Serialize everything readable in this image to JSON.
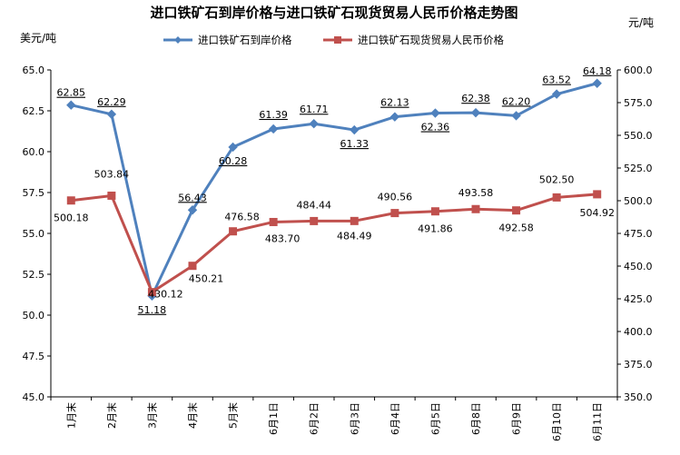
{
  "chart_data": {
    "type": "line",
    "title": "进口铁矿石到岸价格与进口铁矿石现货贸易人民币价格走势图",
    "y_left_unit": "美元/吨",
    "y_right_unit": "元/吨",
    "categories": [
      "1月末",
      "2月末",
      "3月末",
      "4月末",
      "5月末",
      "6月1日",
      "6月2日",
      "6月3日",
      "6月4日",
      "6月5日",
      "6月8日",
      "6月9日",
      "6月10日",
      "6月11日"
    ],
    "y_left_ticks": [
      "45.0",
      "47.5",
      "50.0",
      "52.5",
      "55.0",
      "57.5",
      "60.0",
      "62.5",
      "65.0"
    ],
    "y_right_ticks": [
      "350.0",
      "375.0",
      "400.0",
      "425.0",
      "450.0",
      "475.0",
      "500.0",
      "525.0",
      "550.0",
      "575.0",
      "600.0"
    ],
    "ylim_left": [
      45,
      65
    ],
    "ylim_right": [
      350,
      600
    ],
    "grid": false,
    "legend_position": "top",
    "series": [
      {
        "name": "进口铁矿石到岸价格",
        "axis": "left",
        "color": "#4F81BD",
        "marker": "diamond",
        "values": [
          62.85,
          62.29,
          51.18,
          56.43,
          60.28,
          61.39,
          61.71,
          61.33,
          62.13,
          62.36,
          62.38,
          62.2,
          63.52,
          64.18
        ],
        "labels": [
          "62.85",
          "62.29",
          "51.18",
          "56.43",
          "60.28",
          "61.39",
          "61.71",
          "61.33",
          "62.13",
          "62.36",
          "62.38",
          "62.20",
          "63.52",
          "64.18"
        ]
      },
      {
        "name": "进口铁矿石现货贸易人民币价格",
        "axis": "right",
        "color": "#C0504D",
        "marker": "square",
        "values": [
          500.18,
          503.84,
          430.12,
          450.21,
          476.58,
          483.7,
          484.44,
          484.49,
          490.56,
          491.86,
          493.58,
          492.58,
          502.5,
          504.92
        ],
        "labels": [
          "500.18",
          "503.84",
          "430.12",
          "450.21",
          "476.58",
          "483.70",
          "484.44",
          "484.49",
          "490.56",
          "491.86",
          "493.58",
          "492.58",
          "502.50",
          "504.92"
        ]
      }
    ]
  }
}
